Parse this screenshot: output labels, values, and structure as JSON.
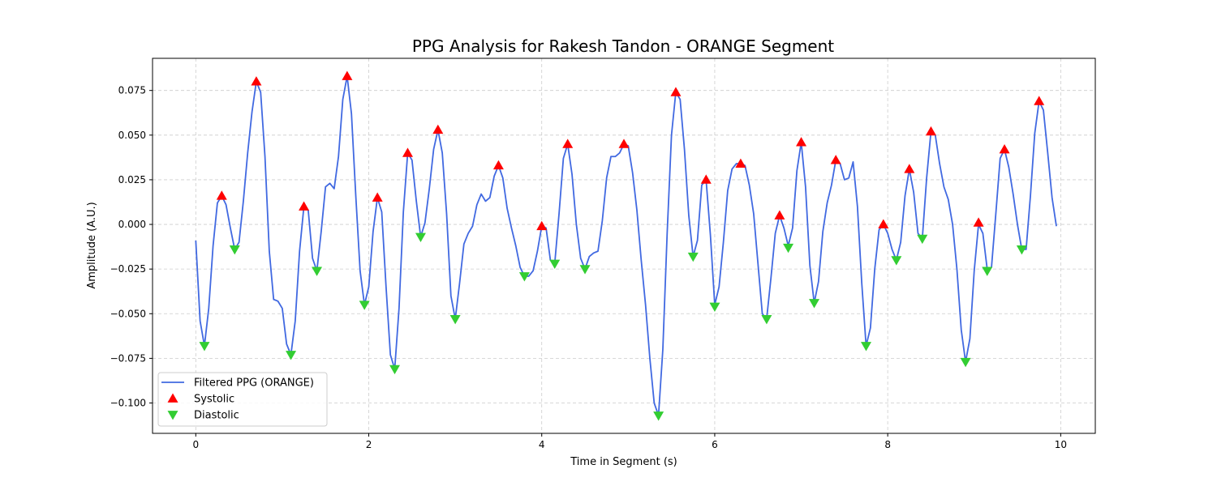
{
  "chart_data": {
    "type": "line",
    "title": "PPG Analysis for Rakesh Tandon - ORANGE Segment",
    "xlabel": "Time in Segment (s)",
    "ylabel": "Amplitude (A.U.)",
    "xlim": [
      -0.5,
      10.4
    ],
    "ylim": [
      -0.117,
      0.093
    ],
    "xticks": [
      0,
      2,
      4,
      6,
      8,
      10
    ],
    "xtick_labels": [
      "0",
      "2",
      "4",
      "6",
      "8",
      "10"
    ],
    "yticks": [
      -0.1,
      -0.075,
      -0.05,
      -0.025,
      0.0,
      0.025,
      0.05,
      0.075
    ],
    "ytick_labels": [
      "−0.100",
      "−0.075",
      "−0.050",
      "−0.025",
      "0.000",
      "0.025",
      "0.050",
      "0.075"
    ],
    "grid": true,
    "legend_position": "lower-left",
    "series": [
      {
        "name": "Filtered PPG (ORANGE)",
        "kind": "line",
        "color": "#4169e1",
        "points": [
          [
            0,
            -0.009
          ],
          [
            0.05,
            -0.054
          ],
          [
            0.1,
            -0.068
          ],
          [
            0.15,
            -0.047
          ],
          [
            0.2,
            -0.012
          ],
          [
            0.25,
            0.012
          ],
          [
            0.3,
            0.016
          ],
          [
            0.35,
            0.011
          ],
          [
            0.4,
            -0.002
          ],
          [
            0.45,
            -0.014
          ],
          [
            0.5,
            -0.01
          ],
          [
            0.55,
            0.013
          ],
          [
            0.6,
            0.04
          ],
          [
            0.65,
            0.063
          ],
          [
            0.7,
            0.08
          ],
          [
            0.75,
            0.074
          ],
          [
            0.8,
            0.038
          ],
          [
            0.85,
            -0.015
          ],
          [
            0.9,
            -0.042
          ],
          [
            0.95,
            -0.043
          ],
          [
            1.0,
            -0.047
          ],
          [
            1.05,
            -0.067
          ],
          [
            1.1,
            -0.073
          ],
          [
            1.15,
            -0.054
          ],
          [
            1.2,
            -0.015
          ],
          [
            1.25,
            0.01
          ],
          [
            1.3,
            0.008
          ],
          [
            1.35,
            -0.019
          ],
          [
            1.4,
            -0.026
          ],
          [
            1.45,
            -0.004
          ],
          [
            1.5,
            0.021
          ],
          [
            1.55,
            0.023
          ],
          [
            1.6,
            0.02
          ],
          [
            1.65,
            0.038
          ],
          [
            1.7,
            0.07
          ],
          [
            1.75,
            0.083
          ],
          [
            1.8,
            0.062
          ],
          [
            1.85,
            0.016
          ],
          [
            1.9,
            -0.026
          ],
          [
            1.95,
            -0.045
          ],
          [
            2.0,
            -0.035
          ],
          [
            2.05,
            -0.004
          ],
          [
            2.1,
            0.015
          ],
          [
            2.15,
            0.007
          ],
          [
            2.2,
            -0.035
          ],
          [
            2.25,
            -0.073
          ],
          [
            2.3,
            -0.081
          ],
          [
            2.35,
            -0.047
          ],
          [
            2.4,
            0.007
          ],
          [
            2.45,
            0.04
          ],
          [
            2.5,
            0.036
          ],
          [
            2.55,
            0.013
          ],
          [
            2.6,
            -0.007
          ],
          [
            2.65,
            0.001
          ],
          [
            2.7,
            0.02
          ],
          [
            2.75,
            0.042
          ],
          [
            2.8,
            0.053
          ],
          [
            2.85,
            0.04
          ],
          [
            2.9,
            0.006
          ],
          [
            2.95,
            -0.04
          ],
          [
            3.0,
            -0.053
          ],
          [
            3.05,
            -0.033
          ],
          [
            3.1,
            -0.011
          ],
          [
            3.15,
            -0.005
          ],
          [
            3.2,
            -0.001
          ],
          [
            3.25,
            0.011
          ],
          [
            3.3,
            0.017
          ],
          [
            3.35,
            0.013
          ],
          [
            3.4,
            0.015
          ],
          [
            3.45,
            0.027
          ],
          [
            3.5,
            0.033
          ],
          [
            3.55,
            0.026
          ],
          [
            3.6,
            0.009
          ],
          [
            3.65,
            -0.002
          ],
          [
            3.7,
            -0.012
          ],
          [
            3.75,
            -0.024
          ],
          [
            3.8,
            -0.029
          ],
          [
            3.85,
            -0.029
          ],
          [
            3.9,
            -0.026
          ],
          [
            3.95,
            -0.015
          ],
          [
            4.0,
            -0.001
          ],
          [
            4.05,
            -0.002
          ],
          [
            4.1,
            -0.02
          ],
          [
            4.15,
            -0.022
          ],
          [
            4.2,
            0.006
          ],
          [
            4.25,
            0.037
          ],
          [
            4.3,
            0.045
          ],
          [
            4.35,
            0.028
          ],
          [
            4.4,
            0.0
          ],
          [
            4.45,
            -0.019
          ],
          [
            4.5,
            -0.025
          ],
          [
            4.55,
            -0.018
          ],
          [
            4.6,
            -0.016
          ],
          [
            4.65,
            -0.015
          ],
          [
            4.7,
            0.002
          ],
          [
            4.75,
            0.026
          ],
          [
            4.8,
            0.038
          ],
          [
            4.85,
            0.038
          ],
          [
            4.9,
            0.04
          ],
          [
            4.95,
            0.045
          ],
          [
            5.0,
            0.044
          ],
          [
            5.05,
            0.029
          ],
          [
            5.1,
            0.008
          ],
          [
            5.15,
            -0.02
          ],
          [
            5.2,
            -0.045
          ],
          [
            5.25,
            -0.075
          ],
          [
            5.3,
            -0.1
          ],
          [
            5.35,
            -0.107
          ],
          [
            5.4,
            -0.07
          ],
          [
            5.45,
            -0.005
          ],
          [
            5.5,
            0.05
          ],
          [
            5.55,
            0.074
          ],
          [
            5.6,
            0.07
          ],
          [
            5.65,
            0.042
          ],
          [
            5.7,
            0.005
          ],
          [
            5.75,
            -0.018
          ],
          [
            5.8,
            -0.009
          ],
          [
            5.85,
            0.022
          ],
          [
            5.9,
            0.025
          ],
          [
            5.95,
            -0.006
          ],
          [
            6.0,
            -0.045
          ],
          [
            6.05,
            -0.035
          ],
          [
            6.1,
            -0.01
          ],
          [
            6.15,
            0.019
          ],
          [
            6.2,
            0.031
          ],
          [
            6.25,
            0.034
          ],
          [
            6.3,
            0.034
          ],
          [
            6.35,
            0.033
          ],
          [
            6.4,
            0.022
          ],
          [
            6.45,
            0.006
          ],
          [
            6.5,
            -0.022
          ],
          [
            6.55,
            -0.05
          ],
          [
            6.6,
            -0.053
          ],
          [
            6.65,
            -0.03
          ],
          [
            6.7,
            -0.005
          ],
          [
            6.75,
            0.005
          ],
          [
            6.8,
            -0.002
          ],
          [
            6.85,
            -0.012
          ],
          [
            6.9,
            -0.002
          ],
          [
            6.95,
            0.03
          ],
          [
            7.0,
            0.046
          ],
          [
            7.05,
            0.021
          ],
          [
            7.1,
            -0.023
          ],
          [
            7.15,
            -0.044
          ],
          [
            7.2,
            -0.032
          ],
          [
            7.25,
            -0.004
          ],
          [
            7.3,
            0.012
          ],
          [
            7.35,
            0.022
          ],
          [
            7.4,
            0.036
          ],
          [
            7.45,
            0.034
          ],
          [
            7.5,
            0.025
          ],
          [
            7.55,
            0.026
          ],
          [
            7.6,
            0.035
          ],
          [
            7.65,
            0.01
          ],
          [
            7.7,
            -0.033
          ],
          [
            7.75,
            -0.068
          ],
          [
            7.8,
            -0.058
          ],
          [
            7.85,
            -0.025
          ],
          [
            7.9,
            -0.003
          ],
          [
            7.95,
            0.0
          ],
          [
            8.0,
            -0.005
          ],
          [
            8.05,
            -0.014
          ],
          [
            8.1,
            -0.02
          ],
          [
            8.15,
            -0.01
          ],
          [
            8.2,
            0.016
          ],
          [
            8.25,
            0.031
          ],
          [
            8.3,
            0.018
          ],
          [
            8.35,
            -0.005
          ],
          [
            8.4,
            -0.008
          ],
          [
            8.45,
            0.026
          ],
          [
            8.5,
            0.052
          ],
          [
            8.55,
            0.05
          ],
          [
            8.6,
            0.034
          ],
          [
            8.65,
            0.021
          ],
          [
            8.7,
            0.014
          ],
          [
            8.75,
            0.0
          ],
          [
            8.8,
            -0.025
          ],
          [
            8.85,
            -0.059
          ],
          [
            8.9,
            -0.077
          ],
          [
            8.95,
            -0.064
          ],
          [
            9.0,
            -0.026
          ],
          [
            9.05,
            0.0
          ],
          [
            9.1,
            -0.005
          ],
          [
            9.15,
            -0.025
          ],
          [
            9.2,
            -0.024
          ],
          [
            9.25,
            0.006
          ],
          [
            9.3,
            0.037
          ],
          [
            9.35,
            0.042
          ],
          [
            9.4,
            0.032
          ],
          [
            9.45,
            0.017
          ],
          [
            9.5,
            0.0
          ],
          [
            9.55,
            -0.014
          ],
          [
            9.6,
            -0.014
          ],
          [
            9.65,
            0.016
          ],
          [
            9.7,
            0.051
          ],
          [
            9.75,
            0.069
          ],
          [
            9.8,
            0.064
          ],
          [
            9.85,
            0.04
          ],
          [
            9.9,
            0.015
          ],
          [
            9.95,
            -0.001
          ]
        ]
      },
      {
        "name": "Systolic",
        "kind": "marker-up",
        "color": "#ff0000",
        "points": [
          [
            0.3,
            0.016
          ],
          [
            0.7,
            0.08
          ],
          [
            1.25,
            0.01
          ],
          [
            1.75,
            0.083
          ],
          [
            2.1,
            0.015
          ],
          [
            2.45,
            0.04
          ],
          [
            2.8,
            0.053
          ],
          [
            3.5,
            0.033
          ],
          [
            4.0,
            -0.001
          ],
          [
            4.3,
            0.045
          ],
          [
            4.95,
            0.045
          ],
          [
            5.55,
            0.074
          ],
          [
            5.9,
            0.025
          ],
          [
            6.3,
            0.034
          ],
          [
            6.75,
            0.005
          ],
          [
            7.0,
            0.046
          ],
          [
            7.4,
            0.036
          ],
          [
            7.95,
            0.0
          ],
          [
            8.25,
            0.031
          ],
          [
            8.5,
            0.052
          ],
          [
            9.05,
            0.001
          ],
          [
            9.35,
            0.042
          ],
          [
            9.75,
            0.069
          ]
        ]
      },
      {
        "name": "Diastolic",
        "kind": "marker-down",
        "color": "#32cd32",
        "points": [
          [
            0.1,
            -0.068
          ],
          [
            0.45,
            -0.014
          ],
          [
            1.1,
            -0.073
          ],
          [
            1.4,
            -0.026
          ],
          [
            1.95,
            -0.045
          ],
          [
            2.3,
            -0.081
          ],
          [
            2.6,
            -0.007
          ],
          [
            3.0,
            -0.053
          ],
          [
            3.8,
            -0.029
          ],
          [
            4.15,
            -0.022
          ],
          [
            4.5,
            -0.025
          ],
          [
            5.35,
            -0.107
          ],
          [
            5.75,
            -0.018
          ],
          [
            6.0,
            -0.046
          ],
          [
            6.6,
            -0.053
          ],
          [
            6.85,
            -0.013
          ],
          [
            7.15,
            -0.044
          ],
          [
            7.75,
            -0.068
          ],
          [
            8.1,
            -0.02
          ],
          [
            8.4,
            -0.008
          ],
          [
            8.9,
            -0.077
          ],
          [
            9.15,
            -0.026
          ],
          [
            9.55,
            -0.014
          ]
        ]
      }
    ]
  }
}
